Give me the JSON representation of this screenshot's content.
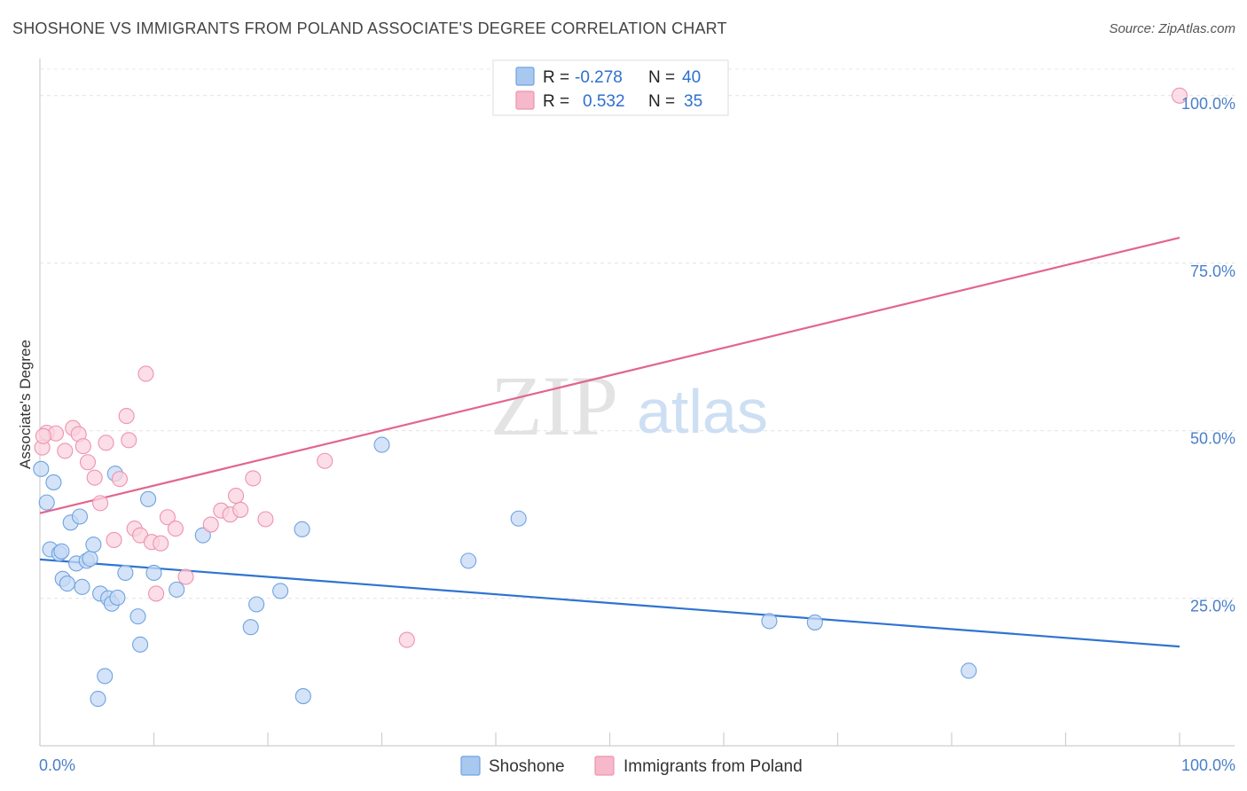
{
  "header": {
    "title": "SHOSHONE VS IMMIGRANTS FROM POLAND ASSOCIATE'S DEGREE CORRELATION CHART",
    "source": "Source: ZipAtlas.com"
  },
  "watermark": {
    "zip": "ZIP",
    "atlas": "atlas"
  },
  "legend_top": {
    "rows": [
      {
        "r_label": "R =",
        "r_value": "-0.278",
        "n_label": "N =",
        "n_value": "40",
        "color": "#a9c8f0"
      },
      {
        "r_label": "R =",
        "r_value": "0.532",
        "n_label": "N =",
        "n_value": "35",
        "color": "#f6b8cb"
      }
    ]
  },
  "legend_bottom": {
    "items": [
      {
        "label": "Shoshone",
        "color": "#a9c8f0"
      },
      {
        "label": "Immigrants from Poland",
        "color": "#f6b8cb"
      }
    ]
  },
  "chart_data": {
    "type": "scatter",
    "title": "SHOSHONE VS IMMIGRANTS FROM POLAND ASSOCIATE'S DEGREE CORRELATION CHART",
    "xlabel": "",
    "ylabel": "Associate's Degree",
    "xlim": [
      0,
      100
    ],
    "ylim": [
      3,
      105
    ],
    "x_tick_labels": {
      "min": "0.0%",
      "max": "100.0%"
    },
    "y_ticks": [
      25,
      50,
      75,
      100
    ],
    "y_tick_labels": [
      "25.0%",
      "50.0%",
      "75.0%",
      "100.0%"
    ],
    "grid": true,
    "series": [
      {
        "name": "Shoshone",
        "color": "#6fa3e0",
        "fill": "#c5daf5",
        "trend": {
          "x": [
            0,
            100
          ],
          "y": [
            30.8,
            17.8
          ],
          "color": "#2f74d0"
        },
        "points": [
          [
            0.1,
            44.3
          ],
          [
            0.6,
            39.3
          ],
          [
            1.2,
            42.3
          ],
          [
            0.9,
            32.3
          ],
          [
            1.7,
            31.7
          ],
          [
            1.9,
            32.0
          ],
          [
            2.0,
            27.9
          ],
          [
            2.4,
            27.2
          ],
          [
            2.7,
            36.3
          ],
          [
            3.2,
            30.2
          ],
          [
            3.5,
            37.2
          ],
          [
            3.7,
            26.7
          ],
          [
            4.1,
            30.6
          ],
          [
            4.4,
            30.9
          ],
          [
            4.7,
            33.0
          ],
          [
            5.3,
            25.7
          ],
          [
            6.0,
            25.0
          ],
          [
            6.3,
            24.2
          ],
          [
            6.8,
            25.1
          ],
          [
            6.6,
            43.6
          ],
          [
            7.5,
            28.8
          ],
          [
            8.6,
            22.3
          ],
          [
            8.8,
            18.1
          ],
          [
            9.5,
            39.8
          ],
          [
            10.0,
            28.8
          ],
          [
            12.0,
            26.3
          ],
          [
            14.3,
            34.4
          ],
          [
            5.7,
            13.4
          ],
          [
            5.1,
            10.0
          ],
          [
            18.5,
            20.7
          ],
          [
            19.0,
            24.1
          ],
          [
            21.1,
            26.1
          ],
          [
            23.0,
            35.3
          ],
          [
            23.1,
            10.4
          ],
          [
            30.0,
            47.9
          ],
          [
            37.6,
            30.6
          ],
          [
            42.0,
            36.9
          ],
          [
            64.0,
            21.6
          ],
          [
            68.0,
            21.4
          ],
          [
            81.5,
            14.2
          ]
        ]
      },
      {
        "name": "Immigrants from Poland",
        "color": "#ee93ae",
        "fill": "#f9d3df",
        "trend": {
          "x": [
            0,
            100
          ],
          "y": [
            37.7,
            78.8
          ],
          "color": "#e2658f"
        },
        "points": [
          [
            0.2,
            47.5
          ],
          [
            0.6,
            49.7
          ],
          [
            1.4,
            49.6
          ],
          [
            2.2,
            47.0
          ],
          [
            2.9,
            50.4
          ],
          [
            3.4,
            49.5
          ],
          [
            3.8,
            47.7
          ],
          [
            4.2,
            45.3
          ],
          [
            4.8,
            43.0
          ],
          [
            5.3,
            39.2
          ],
          [
            5.8,
            48.2
          ],
          [
            6.5,
            33.7
          ],
          [
            7.0,
            42.8
          ],
          [
            7.6,
            52.2
          ],
          [
            7.8,
            48.6
          ],
          [
            8.3,
            35.4
          ],
          [
            8.8,
            34.4
          ],
          [
            9.3,
            58.5
          ],
          [
            9.8,
            33.4
          ],
          [
            10.6,
            33.2
          ],
          [
            11.2,
            37.1
          ],
          [
            11.9,
            35.4
          ],
          [
            12.8,
            28.2
          ],
          [
            10.2,
            25.7
          ],
          [
            15.0,
            36.0
          ],
          [
            15.9,
            38.1
          ],
          [
            16.7,
            37.5
          ],
          [
            17.2,
            40.3
          ],
          [
            17.6,
            38.2
          ],
          [
            18.7,
            42.9
          ],
          [
            19.8,
            36.8
          ],
          [
            25.0,
            45.5
          ],
          [
            32.2,
            18.8
          ],
          [
            100.0,
            100.0
          ],
          [
            0.3,
            49.2
          ]
        ]
      }
    ]
  }
}
